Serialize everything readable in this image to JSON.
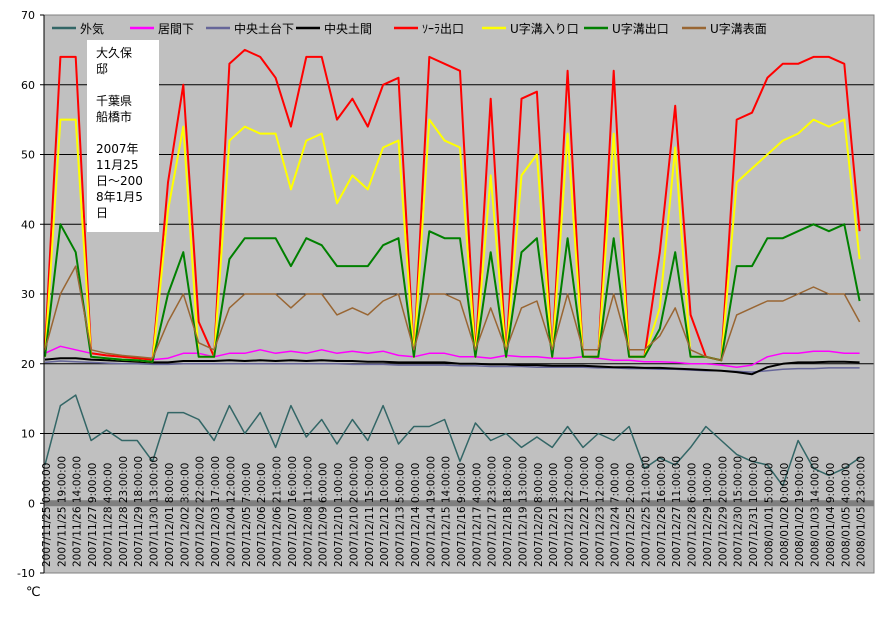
{
  "chart_data": {
    "type": "line",
    "ylabel": "℃",
    "ylim": [
      -10,
      70
    ],
    "yticks": [
      -10,
      0,
      10,
      20,
      30,
      40,
      50,
      60,
      70
    ],
    "grid": true,
    "legend_position": "top",
    "plot_background": "#c0c0c0",
    "annotation": [
      "大久保",
      "邸",
      "",
      "千葉県",
      "船橋市",
      "",
      "2007年",
      "11月25",
      "日～200",
      "8年1月5",
      "日"
    ],
    "categories": [
      "2007/11/25  0:00:00",
      "2007/11/25 19:00:00",
      "2007/11/26 14:00:00",
      "2007/11/27  9:00:00",
      "2007/11/28  4:00:00",
      "2007/11/28 23:00:00",
      "2007/11/29 18:00:00",
      "2007/11/30 13:00:00",
      "2007/12/01  8:00:00",
      "2007/12/02  3:00:00",
      "2007/12/02 22:00:00",
      "2007/12/03 17:00:00",
      "2007/12/04 12:00:00",
      "2007/12/05  7:00:00",
      "2007/12/06  2:00:00",
      "2007/12/06 21:00:00",
      "2007/12/07 16:00:00",
      "2007/12/08 11:00:00",
      "2007/12/09  6:00:00",
      "2007/12/10  1:00:00",
      "2007/12/10 20:00:00",
      "2007/12/11 15:00:00",
      "2007/12/12 10:00:00",
      "2007/12/13  5:00:00",
      "2007/12/14  0:00:00",
      "2007/12/14 19:00:00",
      "2007/12/15 14:00:00",
      "2007/12/16  9:00:00",
      "2007/12/17  4:00:00",
      "2007/12/17 23:00:00",
      "2007/12/18 18:00:00",
      "2007/12/19 13:00:00",
      "2007/12/20  8:00:00",
      "2007/12/21  3:00:00",
      "2007/12/21 22:00:00",
      "2007/12/22 17:00:00",
      "2007/12/23 12:00:00",
      "2007/12/24  7:00:00",
      "2007/12/25  2:00:00",
      "2007/12/25 21:00:00",
      "2007/12/26 16:00:00",
      "2007/12/27 11:00:00",
      "2007/12/28  6:00:00",
      "2007/12/29  1:00:00",
      "2007/12/29 20:00:00",
      "2007/12/30 15:00:00",
      "2007/12/31 10:00:00",
      "2008/01/01  5:00:00",
      "2008/01/02  0:00:00",
      "2008/01/02 19:00:00",
      "2008/01/03 14:00:00",
      "2008/01/04  9:00:00",
      "2008/01/05  4:00:00",
      "2008/01/05 23:00:00"
    ],
    "series": [
      {
        "name": "外気",
        "color": "#336666",
        "width": 1.5,
        "values": [
          5.5,
          14,
          15.5,
          9,
          10.5,
          9,
          9,
          6,
          13,
          13,
          12,
          9,
          14,
          10,
          13,
          8,
          14,
          9.5,
          12,
          8.5,
          12,
          9,
          14,
          8.5,
          11,
          11,
          12,
          6,
          11.5,
          9,
          10,
          8,
          9.5,
          8,
          11,
          8,
          10,
          9,
          11,
          5,
          6.5,
          5.5,
          8,
          11,
          9,
          7,
          6,
          5.5,
          2.5,
          9,
          5,
          4,
          5,
          6.5
        ]
      },
      {
        "name": "居間下",
        "color": "#ff00ff",
        "width": 1.5,
        "values": [
          21.5,
          22.5,
          22,
          21.5,
          21.2,
          21,
          20.8,
          20.6,
          20.8,
          21.5,
          21.5,
          21,
          21.5,
          21.5,
          22,
          21.5,
          21.8,
          21.5,
          22,
          21.5,
          21.8,
          21.5,
          21.8,
          21.2,
          21,
          21.5,
          21.5,
          21,
          21,
          20.8,
          21.2,
          21,
          21,
          20.8,
          20.8,
          21,
          20.8,
          20.5,
          20.5,
          20.3,
          20.3,
          20.2,
          20,
          20,
          19.8,
          19.5,
          19.8,
          21,
          21.5,
          21.5,
          21.8,
          21.8,
          21.5,
          21.5
        ]
      },
      {
        "name": "中央土台下",
        "color": "#666699",
        "width": 1.5,
        "values": [
          20.2,
          20.4,
          20.3,
          20.2,
          20.1,
          20,
          20,
          19.9,
          19.9,
          20,
          20,
          20,
          20,
          20,
          20,
          20,
          20,
          20,
          20,
          20,
          19.9,
          19.9,
          19.9,
          19.8,
          19.8,
          19.8,
          19.8,
          19.7,
          19.7,
          19.6,
          19.6,
          19.6,
          19.5,
          19.5,
          19.5,
          19.5,
          19.4,
          19.4,
          19.3,
          19.3,
          19.2,
          19.2,
          19.1,
          19,
          19,
          18.9,
          18.8,
          19,
          19.2,
          19.3,
          19.3,
          19.4,
          19.4,
          19.4
        ]
      },
      {
        "name": "中央土間",
        "color": "#000000",
        "width": 2,
        "values": [
          20.6,
          20.8,
          20.8,
          20.6,
          20.5,
          20.4,
          20.3,
          20.2,
          20.2,
          20.4,
          20.4,
          20.4,
          20.5,
          20.4,
          20.5,
          20.4,
          20.5,
          20.4,
          20.5,
          20.4,
          20.4,
          20.3,
          20.3,
          20.2,
          20.2,
          20.2,
          20.2,
          20,
          20,
          19.9,
          19.9,
          19.8,
          19.8,
          19.7,
          19.7,
          19.7,
          19.6,
          19.5,
          19.5,
          19.4,
          19.4,
          19.3,
          19.2,
          19.1,
          19,
          18.8,
          18.5,
          19.5,
          20,
          20.2,
          20.2,
          20.3,
          20.3,
          20.2
        ]
      },
      {
        "name": "ｿｰﾗ出口",
        "color": "#ff0000",
        "width": 2,
        "values": [
          22,
          64,
          64,
          21.5,
          21.2,
          21,
          20.8,
          20.6,
          46,
          60,
          26,
          21,
          63,
          65,
          64,
          61,
          54,
          64,
          64,
          55,
          58,
          54,
          60,
          61,
          21,
          64,
          63,
          62,
          21,
          58,
          21,
          58,
          59,
          21,
          62,
          21,
          21,
          62,
          21,
          21,
          36,
          57,
          27,
          21,
          20.5,
          55,
          56,
          61,
          63,
          63,
          64,
          64,
          63,
          39
        ]
      },
      {
        "name": "U字溝入り口",
        "color": "#ffff00",
        "width": 2,
        "values": [
          21,
          55,
          55,
          21,
          20.8,
          20.6,
          20.5,
          20.3,
          42,
          54,
          21,
          21,
          52,
          54,
          53,
          53,
          45,
          52,
          53,
          43,
          47,
          45,
          51,
          52,
          21,
          55,
          52,
          51,
          21,
          47,
          21,
          47,
          50,
          21,
          53,
          21,
          21,
          53,
          21,
          21,
          28,
          51,
          21,
          21,
          20.5,
          46,
          48,
          50,
          52,
          53,
          55,
          54,
          55,
          35
        ]
      },
      {
        "name": "U字溝出口",
        "color": "#008000",
        "width": 2,
        "values": [
          21,
          40,
          36,
          21,
          20.8,
          20.6,
          20.5,
          20.3,
          30,
          36,
          21,
          21,
          35,
          38,
          38,
          38,
          34,
          38,
          37,
          34,
          34,
          34,
          37,
          38,
          21,
          39,
          38,
          38,
          21,
          36,
          21,
          36,
          38,
          21,
          38,
          21,
          21,
          38,
          21,
          21,
          25,
          36,
          21,
          21,
          20.5,
          34,
          34,
          38,
          38,
          39,
          40,
          39,
          40,
          29
        ]
      },
      {
        "name": "U字溝表面",
        "color": "#996633",
        "width": 1.5,
        "values": [
          22,
          30,
          34,
          22,
          21.5,
          21.2,
          21,
          20.8,
          26,
          30,
          23,
          22,
          28,
          30,
          30,
          30,
          28,
          30,
          30,
          27,
          28,
          27,
          29,
          30,
          22,
          30,
          30,
          29,
          22,
          28,
          22,
          28,
          29,
          22,
          30,
          22,
          22,
          30,
          22,
          22,
          24,
          28,
          22,
          21,
          20.5,
          27,
          28,
          29,
          29,
          30,
          31,
          30,
          30,
          26
        ]
      }
    ]
  }
}
